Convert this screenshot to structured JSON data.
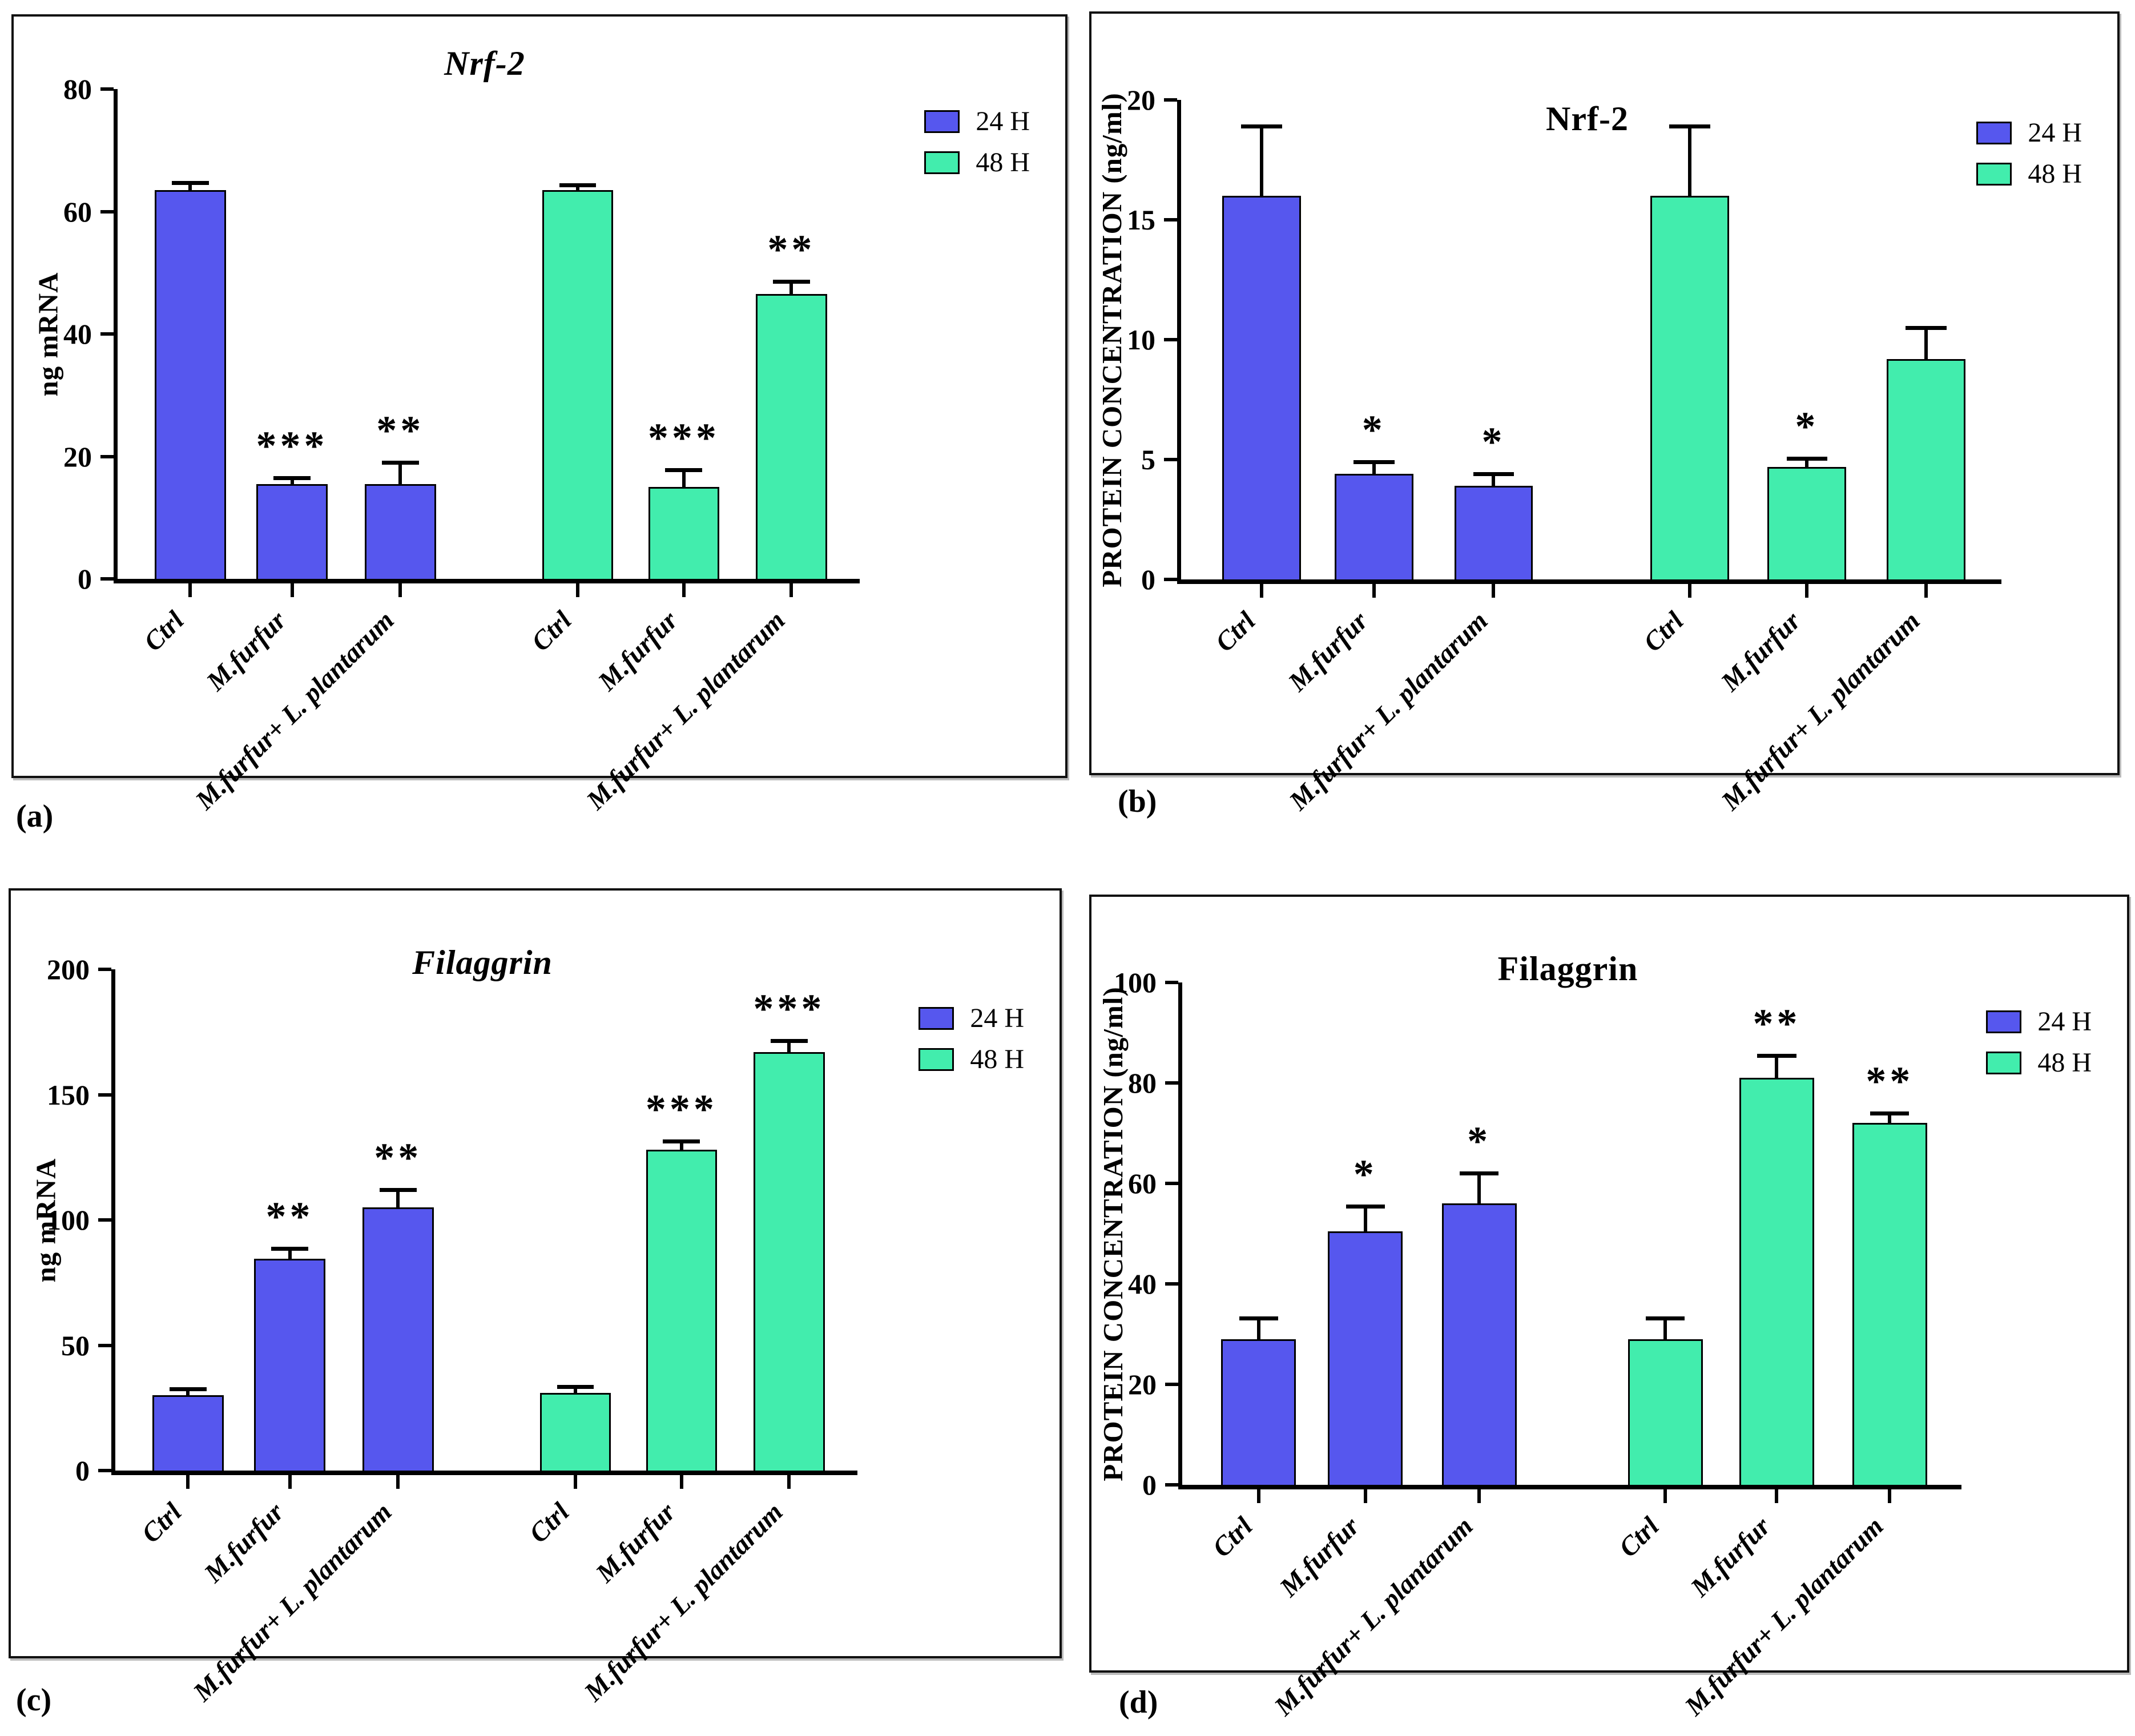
{
  "colors": {
    "24 H": "#5657ee",
    "48 H": "#42edad",
    "axis": "#000000"
  },
  "legend_labels": [
    "24 H",
    "48 H"
  ],
  "chart_data": [
    {
      "type": "bar",
      "panel": "(a)",
      "title": "Nrf-2",
      "title_style": "italic",
      "xlabel": "",
      "ylabel": "ng mRNA",
      "ylim": [
        0,
        80
      ],
      "yticks": [
        0,
        20,
        40,
        60,
        80
      ],
      "grid": false,
      "legend_position": "top-right",
      "categories": [
        "Ctrl",
        "M.furfur",
        "M.furfur+ L. plantarum"
      ],
      "series": [
        {
          "name": "24 H",
          "values": [
            63.5,
            15.5,
            15.5
          ],
          "errors": [
            1.2,
            1.0,
            3.5
          ],
          "sig": [
            "",
            "***",
            "**"
          ]
        },
        {
          "name": "48 H",
          "values": [
            63.5,
            15.0,
            46.5
          ],
          "errors": [
            0.8,
            2.8,
            2.1
          ],
          "sig": [
            "",
            "***",
            "**"
          ]
        }
      ]
    },
    {
      "type": "bar",
      "panel": "(b)",
      "title": "Nrf-2",
      "title_style": "normal",
      "xlabel": "",
      "ylabel": "PROTEIN CONCENTRATION (ng/ml)",
      "ylim": [
        0,
        20
      ],
      "yticks": [
        0,
        5,
        10,
        15,
        20
      ],
      "grid": false,
      "legend_position": "top-right",
      "categories": [
        "Ctrl",
        "M.furfur",
        "M.furfur+ L. plantarum"
      ],
      "series": [
        {
          "name": "24 H",
          "values": [
            16.0,
            4.4,
            3.9
          ],
          "errors": [
            2.9,
            0.5,
            0.5
          ],
          "sig": [
            "",
            "*",
            "*"
          ]
        },
        {
          "name": "48 H",
          "values": [
            16.0,
            4.7,
            9.2
          ],
          "errors": [
            2.9,
            0.35,
            1.3
          ],
          "sig": [
            "",
            "*",
            ""
          ]
        }
      ]
    },
    {
      "type": "bar",
      "panel": "(c)",
      "title": "Filaggrin",
      "title_style": "italic",
      "xlabel": "",
      "ylabel": "ng mRNA",
      "ylim": [
        0,
        200
      ],
      "yticks": [
        0,
        50,
        100,
        150,
        200
      ],
      "grid": false,
      "legend_position": "top-right",
      "categories": [
        "Ctrl",
        "M.furfur",
        "M.furfur+ L. plantarum"
      ],
      "series": [
        {
          "name": "24 H",
          "values": [
            30,
            84.5,
            105
          ],
          "errors": [
            2.5,
            4.0,
            7.0
          ],
          "sig": [
            "",
            "**",
            "**"
          ]
        },
        {
          "name": "48 H",
          "values": [
            31,
            128,
            167
          ],
          "errors": [
            2.5,
            3.5,
            4.5
          ],
          "sig": [
            "",
            "***",
            "***"
          ]
        }
      ]
    },
    {
      "type": "bar",
      "panel": "(d)",
      "title": "Filaggrin",
      "title_style": "normal",
      "xlabel": "",
      "ylabel": "PROTEIN CONCENTRATION (ng/ml)",
      "ylim": [
        0,
        100
      ],
      "yticks": [
        0,
        20,
        40,
        60,
        80,
        100
      ],
      "grid": false,
      "legend_position": "top-right",
      "categories": [
        "Ctrl",
        "M.furfur",
        "M.furfur+ L. plantarum"
      ],
      "series": [
        {
          "name": "24 H",
          "values": [
            29,
            50.5,
            56
          ],
          "errors": [
            4.2,
            5.0,
            6.0
          ],
          "sig": [
            "",
            "*",
            "*"
          ]
        },
        {
          "name": "48 H",
          "values": [
            29,
            81,
            72
          ],
          "errors": [
            4.2,
            4.5,
            2.0
          ],
          "sig": [
            "",
            "**",
            "**"
          ]
        }
      ]
    }
  ]
}
